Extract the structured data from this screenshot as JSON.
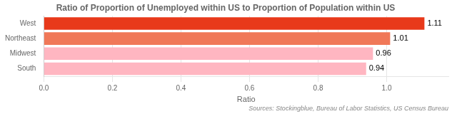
{
  "chart_data": {
    "type": "bar",
    "orientation": "horizontal",
    "title": "Ratio of Proportion of Unemployed within US to Proportion of Population within US",
    "categories": [
      "West",
      "Northeast",
      "Midwest",
      "South"
    ],
    "values": [
      1.11,
      1.01,
      0.96,
      0.94
    ],
    "colors": [
      "#e8391a",
      "#f07858",
      "#ffb6c1",
      "#ffb6c1"
    ],
    "xlabel": "Ratio",
    "xlim": [
      0,
      1.18
    ],
    "xticks": [
      {
        "value": 0,
        "label": "0.0"
      },
      0.2,
      0.4,
      0.6,
      0.8,
      {
        "value": 1,
        "label": "1.0"
      }
    ],
    "grid": true,
    "data_labels": true,
    "annotations": [
      "Sources: Stockingblue, Bureau of Labor Statistics, US Census Bureau"
    ]
  }
}
